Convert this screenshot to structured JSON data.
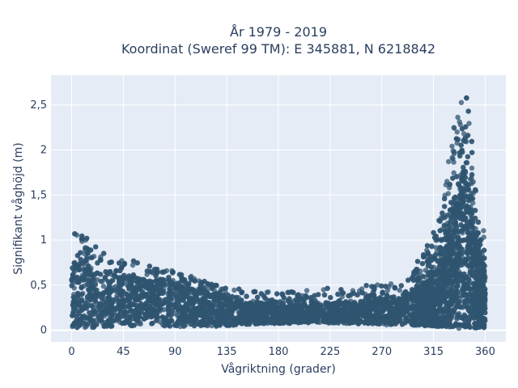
{
  "chart_data": {
    "type": "scatter",
    "title_line1": "År 1979 - 2019",
    "title_line2": "Koordinat (Sweref 99 TM): E 345881, N 6218842",
    "xlabel": "Vågriktning (grader)",
    "ylabel": "Signifikant våghöjd (m)",
    "xlim": [
      -18,
      378
    ],
    "ylim": [
      -0.13,
      2.83
    ],
    "x_ticks": [
      0,
      45,
      90,
      135,
      180,
      225,
      270,
      315,
      360
    ],
    "x_tick_labels": [
      "0",
      "45",
      "90",
      "135",
      "180",
      "225",
      "270",
      "315",
      "360"
    ],
    "y_ticks": [
      0,
      0.5,
      1,
      1.5,
      2,
      2.5
    ],
    "y_tick_labels": [
      "0",
      "0,5",
      "1",
      "1,5",
      "2",
      "2,5"
    ],
    "grid": true,
    "colors": {
      "plot_bg": "#e5ecf6",
      "grid": "#ffffff",
      "marker": "#2f5470",
      "text": "#2a3f5f"
    },
    "envelope": {
      "direction": [
        0,
        10,
        20,
        30,
        45,
        60,
        75,
        90,
        105,
        120,
        135,
        150,
        165,
        180,
        195,
        210,
        225,
        240,
        255,
        270,
        285,
        300,
        310,
        320,
        325,
        330,
        335,
        340,
        343,
        347,
        350,
        355,
        360
      ],
      "min_height": [
        0.02,
        0.02,
        0.03,
        0.04,
        0.05,
        0.05,
        0.05,
        0.04,
        0.04,
        0.04,
        0.05,
        0.06,
        0.07,
        0.07,
        0.08,
        0.08,
        0.08,
        0.07,
        0.07,
        0.06,
        0.06,
        0.05,
        0.05,
        0.04,
        0.03,
        0.03,
        0.02,
        0.02,
        0.02,
        0.02,
        0.02,
        0.03,
        0.03
      ],
      "max_height": [
        1.08,
        1.1,
        0.95,
        0.85,
        0.8,
        0.75,
        0.72,
        0.7,
        0.6,
        0.52,
        0.48,
        0.45,
        0.45,
        0.45,
        0.43,
        0.45,
        0.55,
        0.48,
        0.5,
        0.52,
        0.58,
        0.75,
        0.95,
        1.3,
        1.6,
        2.1,
        2.4,
        2.7,
        2.7,
        2.4,
        1.9,
        1.2,
        1.1
      ],
      "dense_upper": [
        0.7,
        0.72,
        0.62,
        0.6,
        0.58,
        0.55,
        0.55,
        0.55,
        0.45,
        0.4,
        0.35,
        0.3,
        0.3,
        0.28,
        0.28,
        0.3,
        0.3,
        0.3,
        0.32,
        0.33,
        0.35,
        0.45,
        0.55,
        0.75,
        0.95,
        1.2,
        1.5,
        1.75,
        1.75,
        1.55,
        1.1,
        0.8,
        0.72
      ]
    }
  }
}
